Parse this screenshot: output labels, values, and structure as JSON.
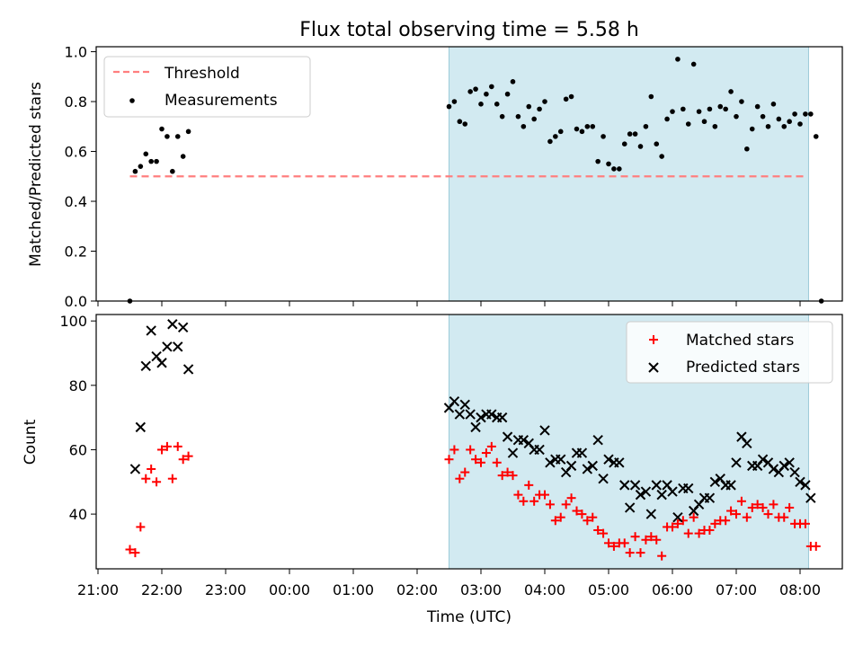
{
  "title": "Flux total observing time = 5.58 h",
  "xlabel": "Time (UTC)",
  "colors": {
    "threshold": "#ff7f7f",
    "measurement": "#000000",
    "matched": "#ff0000",
    "predicted": "#000000",
    "shade": "#add8e6"
  },
  "chart_data": [
    {
      "type": "scatter",
      "ylabel": "Matched/Predicted stars",
      "ylim": [
        0,
        1.02
      ],
      "yticks": [
        0.0,
        0.2,
        0.4,
        0.6,
        0.8,
        1.0
      ],
      "ytick_labels": [
        "0.0",
        "0.2",
        "0.4",
        "0.6",
        "0.8",
        "1.0"
      ],
      "xlim": [
        "21:00",
        "08:43"
      ],
      "shaded_span": [
        "02:30",
        "08:08"
      ],
      "legend": {
        "placement": "top-left",
        "entries": [
          "Threshold",
          "Measurements"
        ]
      },
      "threshold": {
        "name": "Threshold",
        "value": 0.5,
        "x_range": [
          "21:30",
          "08:05"
        ]
      },
      "series": [
        {
          "name": "Measurements",
          "marker": "dot",
          "points": [
            [
              "21:30",
              0.0
            ],
            [
              "21:35",
              0.52
            ],
            [
              "21:40",
              0.54
            ],
            [
              "21:45",
              0.59
            ],
            [
              "21:50",
              0.56
            ],
            [
              "21:55",
              0.56
            ],
            [
              "22:00",
              0.69
            ],
            [
              "22:05",
              0.66
            ],
            [
              "22:10",
              0.52
            ],
            [
              "22:15",
              0.66
            ],
            [
              "22:20",
              0.58
            ],
            [
              "22:25",
              0.68
            ],
            [
              "02:30",
              0.78
            ],
            [
              "02:35",
              0.8
            ],
            [
              "02:40",
              0.72
            ],
            [
              "02:45",
              0.71
            ],
            [
              "02:50",
              0.84
            ],
            [
              "02:55",
              0.85
            ],
            [
              "03:00",
              0.79
            ],
            [
              "03:05",
              0.83
            ],
            [
              "03:10",
              0.86
            ],
            [
              "03:15",
              0.79
            ],
            [
              "03:20",
              0.74
            ],
            [
              "03:25",
              0.83
            ],
            [
              "03:30",
              0.88
            ],
            [
              "03:35",
              0.74
            ],
            [
              "03:40",
              0.7
            ],
            [
              "03:45",
              0.78
            ],
            [
              "03:50",
              0.73
            ],
            [
              "03:55",
              0.77
            ],
            [
              "04:00",
              0.8
            ],
            [
              "04:05",
              0.64
            ],
            [
              "04:10",
              0.66
            ],
            [
              "04:15",
              0.68
            ],
            [
              "04:20",
              0.81
            ],
            [
              "04:25",
              0.82
            ],
            [
              "04:30",
              0.69
            ],
            [
              "04:35",
              0.68
            ],
            [
              "04:40",
              0.7
            ],
            [
              "04:45",
              0.7
            ],
            [
              "04:50",
              0.56
            ],
            [
              "04:55",
              0.66
            ],
            [
              "05:00",
              0.55
            ],
            [
              "05:05",
              0.53
            ],
            [
              "05:10",
              0.53
            ],
            [
              "05:15",
              0.63
            ],
            [
              "05:20",
              0.67
            ],
            [
              "05:25",
              0.67
            ],
            [
              "05:30",
              0.62
            ],
            [
              "05:35",
              0.7
            ],
            [
              "05:40",
              0.82
            ],
            [
              "05:45",
              0.63
            ],
            [
              "05:50",
              0.58
            ],
            [
              "05:55",
              0.73
            ],
            [
              "06:00",
              0.76
            ],
            [
              "06:05",
              0.97
            ],
            [
              "06:10",
              0.77
            ],
            [
              "06:15",
              0.71
            ],
            [
              "06:20",
              0.95
            ],
            [
              "06:25",
              0.76
            ],
            [
              "06:30",
              0.72
            ],
            [
              "06:35",
              0.77
            ],
            [
              "06:40",
              0.7
            ],
            [
              "06:45",
              0.78
            ],
            [
              "06:50",
              0.77
            ],
            [
              "06:55",
              0.84
            ],
            [
              "07:00",
              0.74
            ],
            [
              "07:05",
              0.8
            ],
            [
              "07:10",
              0.61
            ],
            [
              "07:15",
              0.69
            ],
            [
              "07:20",
              0.78
            ],
            [
              "07:25",
              0.74
            ],
            [
              "07:30",
              0.7
            ],
            [
              "07:35",
              0.79
            ],
            [
              "07:40",
              0.73
            ],
            [
              "07:45",
              0.7
            ],
            [
              "07:50",
              0.72
            ],
            [
              "07:55",
              0.75
            ],
            [
              "08:00",
              0.71
            ],
            [
              "08:05",
              0.75
            ],
            [
              "08:10",
              0.75
            ],
            [
              "08:15",
              0.66
            ],
            [
              "08:20",
              0.0
            ]
          ]
        }
      ]
    },
    {
      "type": "scatter",
      "ylabel": "Count",
      "ylim": [
        23,
        102
      ],
      "yticks": [
        40,
        60,
        80,
        100
      ],
      "ytick_labels": [
        "40",
        "60",
        "80",
        "100"
      ],
      "xlim": [
        "21:00",
        "08:43"
      ],
      "xticks": [
        "21:00",
        "22:00",
        "23:00",
        "00:00",
        "01:00",
        "02:00",
        "03:00",
        "04:00",
        "05:00",
        "06:00",
        "07:00",
        "08:00"
      ],
      "shaded_span": [
        "02:30",
        "08:08"
      ],
      "legend": {
        "placement": "top-right",
        "entries": [
          "Matched stars",
          "Predicted stars"
        ]
      },
      "series": [
        {
          "name": "Matched stars",
          "marker": "plus",
          "points": [
            [
              "21:30",
              29
            ],
            [
              "21:35",
              28
            ],
            [
              "21:40",
              36
            ],
            [
              "21:45",
              51
            ],
            [
              "21:50",
              54
            ],
            [
              "21:55",
              50
            ],
            [
              "22:00",
              60
            ],
            [
              "22:05",
              61
            ],
            [
              "22:10",
              51
            ],
            [
              "22:15",
              61
            ],
            [
              "22:20",
              57
            ],
            [
              "22:25",
              58
            ],
            [
              "02:30",
              57
            ],
            [
              "02:35",
              60
            ],
            [
              "02:40",
              51
            ],
            [
              "02:45",
              53
            ],
            [
              "02:50",
              60
            ],
            [
              "02:55",
              57
            ],
            [
              "03:00",
              56
            ],
            [
              "03:05",
              59
            ],
            [
              "03:10",
              61
            ],
            [
              "03:15",
              56
            ],
            [
              "03:20",
              52
            ],
            [
              "03:25",
              53
            ],
            [
              "03:30",
              52
            ],
            [
              "03:35",
              46
            ],
            [
              "03:40",
              44
            ],
            [
              "03:45",
              49
            ],
            [
              "03:50",
              44
            ],
            [
              "03:55",
              46
            ],
            [
              "04:00",
              46
            ],
            [
              "04:05",
              43
            ],
            [
              "04:10",
              38
            ],
            [
              "04:15",
              39
            ],
            [
              "04:20",
              43
            ],
            [
              "04:25",
              45
            ],
            [
              "04:30",
              41
            ],
            [
              "04:35",
              40
            ],
            [
              "04:40",
              38
            ],
            [
              "04:45",
              39
            ],
            [
              "04:50",
              35
            ],
            [
              "04:55",
              34
            ],
            [
              "05:00",
              31
            ],
            [
              "05:05",
              30
            ],
            [
              "05:10",
              31
            ],
            [
              "05:15",
              31
            ],
            [
              "05:20",
              28
            ],
            [
              "05:25",
              33
            ],
            [
              "05:30",
              28
            ],
            [
              "05:35",
              32
            ],
            [
              "05:40",
              33
            ],
            [
              "05:45",
              32
            ],
            [
              "05:50",
              27
            ],
            [
              "05:55",
              36
            ],
            [
              "06:00",
              36
            ],
            [
              "06:05",
              37
            ],
            [
              "06:10",
              38
            ],
            [
              "06:15",
              34
            ],
            [
              "06:20",
              39
            ],
            [
              "06:25",
              34
            ],
            [
              "06:30",
              35
            ],
            [
              "06:35",
              35
            ],
            [
              "06:40",
              37
            ],
            [
              "06:45",
              38
            ],
            [
              "06:50",
              38
            ],
            [
              "06:55",
              41
            ],
            [
              "07:00",
              40
            ],
            [
              "07:05",
              44
            ],
            [
              "07:10",
              39
            ],
            [
              "07:15",
              42
            ],
            [
              "07:20",
              43
            ],
            [
              "07:25",
              42
            ],
            [
              "07:30",
              40
            ],
            [
              "07:35",
              43
            ],
            [
              "07:40",
              39
            ],
            [
              "07:45",
              39
            ],
            [
              "07:50",
              42
            ],
            [
              "07:55",
              37
            ],
            [
              "08:00",
              37
            ],
            [
              "08:05",
              37
            ],
            [
              "08:10",
              30
            ],
            [
              "08:15",
              30
            ]
          ]
        },
        {
          "name": "Predicted stars",
          "marker": "x",
          "points": [
            [
              "21:35",
              54
            ],
            [
              "21:40",
              67
            ],
            [
              "21:45",
              86
            ],
            [
              "21:50",
              97
            ],
            [
              "21:55",
              89
            ],
            [
              "22:00",
              87
            ],
            [
              "22:05",
              92
            ],
            [
              "22:10",
              99
            ],
            [
              "22:15",
              92
            ],
            [
              "22:20",
              98
            ],
            [
              "22:25",
              85
            ],
            [
              "02:30",
              73
            ],
            [
              "02:35",
              75
            ],
            [
              "02:40",
              71
            ],
            [
              "02:45",
              74
            ],
            [
              "02:50",
              71
            ],
            [
              "02:55",
              67
            ],
            [
              "03:00",
              70
            ],
            [
              "03:05",
              71
            ],
            [
              "03:10",
              71
            ],
            [
              "03:15",
              70
            ],
            [
              "03:20",
              70
            ],
            [
              "03:25",
              64
            ],
            [
              "03:30",
              59
            ],
            [
              "03:35",
              63
            ],
            [
              "03:40",
              63
            ],
            [
              "03:45",
              62
            ],
            [
              "03:50",
              60
            ],
            [
              "03:55",
              60
            ],
            [
              "04:00",
              66
            ],
            [
              "04:05",
              56
            ],
            [
              "04:10",
              57
            ],
            [
              "04:15",
              57
            ],
            [
              "04:20",
              53
            ],
            [
              "04:25",
              55
            ],
            [
              "04:30",
              59
            ],
            [
              "04:35",
              59
            ],
            [
              "04:40",
              54
            ],
            [
              "04:45",
              55
            ],
            [
              "04:50",
              63
            ],
            [
              "04:55",
              51
            ],
            [
              "05:00",
              57
            ],
            [
              "05:05",
              56
            ],
            [
              "05:10",
              56
            ],
            [
              "05:15",
              49
            ],
            [
              "05:20",
              42
            ],
            [
              "05:25",
              49
            ],
            [
              "05:30",
              46
            ],
            [
              "05:35",
              47
            ],
            [
              "05:40",
              40
            ],
            [
              "05:45",
              49
            ],
            [
              "05:50",
              46
            ],
            [
              "05:55",
              49
            ],
            [
              "06:00",
              47
            ],
            [
              "06:05",
              39
            ],
            [
              "06:10",
              48
            ],
            [
              "06:15",
              48
            ],
            [
              "06:20",
              41
            ],
            [
              "06:25",
              43
            ],
            [
              "06:30",
              45
            ],
            [
              "06:35",
              45
            ],
            [
              "06:40",
              50
            ],
            [
              "06:45",
              51
            ],
            [
              "06:50",
              49
            ],
            [
              "06:55",
              49
            ],
            [
              "07:00",
              56
            ],
            [
              "07:05",
              64
            ],
            [
              "07:10",
              62
            ],
            [
              "07:15",
              55
            ],
            [
              "07:20",
              55
            ],
            [
              "07:25",
              57
            ],
            [
              "07:30",
              56
            ],
            [
              "07:35",
              54
            ],
            [
              "07:40",
              53
            ],
            [
              "07:45",
              55
            ],
            [
              "07:50",
              56
            ],
            [
              "07:55",
              53
            ],
            [
              "08:00",
              50
            ],
            [
              "08:05",
              49
            ],
            [
              "08:10",
              45
            ]
          ]
        }
      ]
    }
  ]
}
